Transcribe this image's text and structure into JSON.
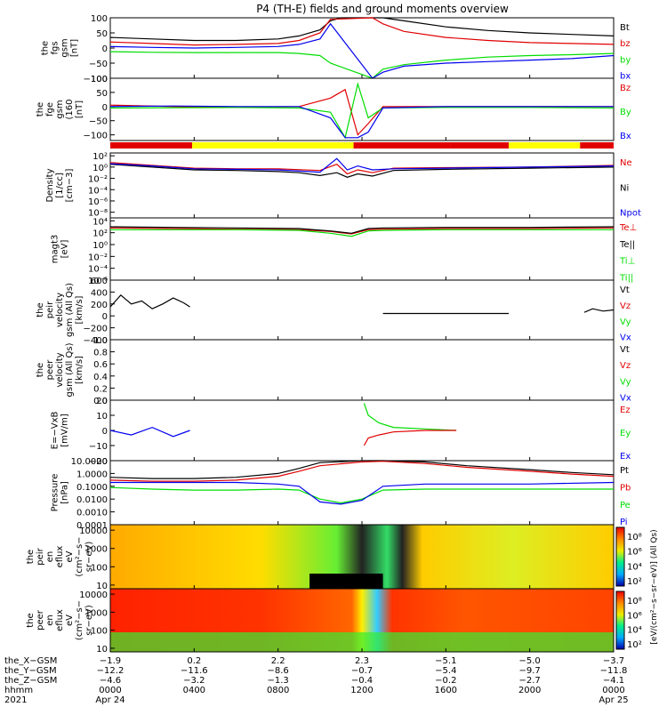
{
  "title": "P4 (TH-E) fields and ground moments overview",
  "colors": {
    "black": "#000000",
    "red": "#e00000",
    "green": "#00dd00",
    "blue": "#0000ee",
    "yellow": "#ffff00",
    "mode_red": "#e00000"
  },
  "panels": [
    {
      "id": "fgs",
      "ylabel_lines": [
        "the",
        "fgs",
        "gsm",
        "[nT]"
      ],
      "ticks": [
        "100",
        "50",
        "0",
        "−50",
        "−100"
      ],
      "legend": [
        {
          "text": "Bt",
          "color": "black"
        },
        {
          "text": "bz",
          "color": "red"
        },
        {
          "text": "by",
          "color": "green"
        },
        {
          "text": "bx",
          "color": "blue"
        }
      ]
    },
    {
      "id": "fge",
      "ylabel_lines": [
        "the",
        "fge",
        "gsm",
        "(160",
        "[nT]"
      ],
      "ticks": [
        "100",
        "50",
        "0",
        "−50",
        "−100"
      ],
      "legend": [
        {
          "text": "Bz",
          "color": "red"
        },
        {
          "text": "By",
          "color": "green"
        },
        {
          "text": "Bx",
          "color": "blue"
        }
      ]
    },
    {
      "id": "density",
      "ylabel_lines": [
        "Density",
        "[1/cc]",
        "[cm−3]"
      ],
      "ticks": [
        "10²",
        "10⁰",
        "10⁻²",
        "10⁻⁴",
        "10⁻⁶",
        "10⁻⁸"
      ],
      "legend": [
        {
          "text": "Ne",
          "color": "red"
        },
        {
          "text": "Ni",
          "color": "black"
        },
        {
          "text": "Npot",
          "color": "blue"
        }
      ]
    },
    {
      "id": "temp",
      "ylabel_lines": [
        "magt3",
        "[eV]"
      ],
      "ticks": [
        "10⁴",
        "10²",
        "10⁰",
        "10⁻²",
        "10⁻⁴",
        "10⁻⁶"
      ],
      "legend": [
        {
          "text": "Te⊥",
          "color": "red"
        },
        {
          "text": "Te||",
          "color": "black"
        },
        {
          "text": "Ti⊥",
          "color": "green"
        },
        {
          "text": "Ti||",
          "color": "green"
        }
      ]
    },
    {
      "id": "peir_vel",
      "ylabel_lines": [
        "the",
        "peir",
        "velocity",
        "gsm (All Qs)",
        "[km/s]"
      ],
      "ticks": [
        "600",
        "400",
        "200",
        "0",
        "−200",
        "−400"
      ],
      "legend": [
        {
          "text": "Vt",
          "color": "black"
        },
        {
          "text": "Vz",
          "color": "red"
        },
        {
          "text": "Vy",
          "color": "green"
        },
        {
          "text": "Vx",
          "color": "blue"
        }
      ]
    },
    {
      "id": "peer_vel",
      "ylabel_lines": [
        "the",
        "peer",
        "velocity",
        "gsm (All Qs)",
        "[km/s]"
      ],
      "ticks": [
        "1.0",
        "0.8",
        "0.6",
        "0.4",
        "0.2",
        "0.0"
      ],
      "legend": [
        {
          "text": "Vt",
          "color": "black"
        },
        {
          "text": "Vz",
          "color": "red"
        },
        {
          "text": "Vy",
          "color": "green"
        },
        {
          "text": "Vx",
          "color": "blue"
        }
      ]
    },
    {
      "id": "efield",
      "ylabel_lines": [
        "E=−VxB",
        "[mV/m]"
      ],
      "ticks": [
        "20",
        "10",
        "0",
        "−10",
        "−20"
      ],
      "legend": [
        {
          "text": "Ez",
          "color": "red"
        },
        {
          "text": "Ey",
          "color": "green"
        },
        {
          "text": "Ex",
          "color": "blue"
        }
      ]
    },
    {
      "id": "pressure",
      "ylabel_lines": [
        "Pressure",
        "[nPa]"
      ],
      "ticks": [
        "10.0000",
        "1.0000",
        "0.1000",
        "0.0100",
        "0.0010",
        "0.0001"
      ],
      "legend": [
        {
          "text": "Pt",
          "color": "black"
        },
        {
          "text": "Pb",
          "color": "red"
        },
        {
          "text": "Pe",
          "color": "green"
        },
        {
          "text": "Pi",
          "color": "blue"
        }
      ]
    },
    {
      "id": "peir_spec",
      "ylabel_lines": [
        "the",
        "peir",
        "en",
        "eflux",
        "eV",
        "(cm²−s−",
        "sr−eV)"
      ],
      "ticks": [
        "10000",
        "1000",
        "100",
        "10"
      ],
      "colorbar_ticks": [
        "10⁸",
        "10⁶",
        "10⁴",
        "10²"
      ]
    },
    {
      "id": "peer_spec",
      "ylabel_lines": [
        "the",
        "peer",
        "en",
        "eflux",
        "eV",
        "(cm²−s−",
        "sr−eV)"
      ],
      "ticks": [
        "10000",
        "1000",
        "100",
        "10"
      ],
      "colorbar_ticks": [
        "10⁸",
        "10⁶",
        "10⁴",
        "10²"
      ]
    }
  ],
  "colorbar_label": "[eV/(cm²−s−sr−eV)] (All Qs)",
  "axis": {
    "row_labels": [
      "the_X−GSM",
      "the_Y−GSM",
      "the_Z−GSM",
      "hhmm",
      "2021"
    ],
    "columns": [
      [
        "−1.9",
        "−12.2",
        "−4.6",
        "0000",
        "Apr 24"
      ],
      [
        "0.2",
        "−11.6",
        "−3.2",
        "0400",
        ""
      ],
      [
        "2.2",
        "−8.6",
        "−1.3",
        "0800",
        ""
      ],
      [
        "2.3",
        "−0.7",
        "−0.4",
        "1200",
        ""
      ],
      [
        "−5.1",
        "−5.4",
        "−0.2",
        "1600",
        ""
      ],
      [
        "−5.0",
        "−9.7",
        "−2.7",
        "2000",
        ""
      ],
      [
        "−3.7",
        "−11.8",
        "−4.1",
        "0000",
        "Apr 25"
      ]
    ]
  },
  "chart_data": {
    "type": "line",
    "title": "P4 (TH-E) fields and ground moments overview",
    "x_range_hours": [
      0,
      24
    ],
    "x_tick_labels": [
      "0000",
      "0400",
      "0800",
      "1200",
      "1600",
      "2000",
      "0000"
    ],
    "mode_bar": [
      {
        "start": 0,
        "end": 3.9,
        "color": "mode_red"
      },
      {
        "start": 3.9,
        "end": 11.6,
        "color": "yellow"
      },
      {
        "start": 11.6,
        "end": 16.2,
        "color": "mode_red"
      },
      {
        "start": 16.2,
        "end": 19.0,
        "color": "mode_red"
      },
      {
        "start": 19.0,
        "end": 22.4,
        "color": "yellow"
      },
      {
        "start": 22.4,
        "end": 24,
        "color": "mode_red"
      }
    ],
    "series": [
      {
        "panel": "fgs",
        "name": "Bt",
        "color": "black",
        "x": [
          0,
          2,
          4,
          6,
          8,
          9,
          10,
          10.5,
          11,
          12,
          12.5,
          13,
          14,
          16,
          18,
          20,
          22,
          24
        ],
        "y": [
          35,
          30,
          25,
          25,
          30,
          40,
          60,
          90,
          100,
          100,
          100,
          100,
          90,
          70,
          58,
          50,
          45,
          40
        ]
      },
      {
        "panel": "fgs",
        "name": "bz",
        "color": "red",
        "x": [
          0,
          2,
          4,
          6,
          8,
          9,
          10,
          10.5,
          12.5,
          13,
          14,
          16,
          18,
          20,
          22,
          24
        ],
        "y": [
          20,
          15,
          10,
          12,
          15,
          25,
          50,
          95,
          100,
          80,
          55,
          35,
          25,
          18,
          15,
          12
        ]
      },
      {
        "panel": "fgs",
        "name": "by",
        "color": "green",
        "x": [
          0,
          2,
          4,
          6,
          8,
          9,
          10,
          10.5,
          12.5,
          13,
          14,
          16,
          18,
          20,
          22,
          24
        ],
        "y": [
          -12,
          -14,
          -15,
          -15,
          -15,
          -18,
          -25,
          -50,
          -100,
          -70,
          -55,
          -40,
          -30,
          -25,
          -22,
          -18
        ]
      },
      {
        "panel": "fgs",
        "name": "bx",
        "color": "blue",
        "x": [
          0,
          2,
          4,
          6,
          8,
          9,
          10,
          10.5,
          12.5,
          13,
          14,
          16,
          18,
          20,
          22,
          24
        ],
        "y": [
          5,
          2,
          0,
          2,
          5,
          12,
          30,
          80,
          -100,
          -80,
          -60,
          -50,
          -45,
          -40,
          -35,
          -25
        ]
      },
      {
        "panel": "fge",
        "name": "Bz",
        "color": "red",
        "x": [
          0,
          3,
          6,
          9,
          10.5,
          11.2,
          11.8,
          12.3,
          13,
          16,
          20,
          24
        ],
        "y": [
          5,
          0,
          -2,
          0,
          30,
          60,
          -100,
          -60,
          0,
          0,
          0,
          0
        ]
      },
      {
        "panel": "fge",
        "name": "By",
        "color": "green",
        "x": [
          0,
          3,
          6,
          9,
          10.5,
          11.2,
          11.8,
          12.3,
          13,
          16,
          20,
          24
        ],
        "y": [
          -5,
          -4,
          -3,
          -5,
          -20,
          -110,
          80,
          -40,
          -5,
          -3,
          -3,
          -5
        ]
      },
      {
        "panel": "fge",
        "name": "Bx",
        "color": "blue",
        "x": [
          0,
          3,
          6,
          9,
          10.5,
          11.2,
          11.8,
          12.3,
          13,
          16,
          20,
          24
        ],
        "y": [
          0,
          2,
          0,
          0,
          -40,
          -110,
          -110,
          -90,
          -5,
          0,
          0,
          0
        ]
      },
      {
        "panel": "density",
        "name": "Ni",
        "color": "black",
        "x": [
          0,
          2,
          4,
          6,
          8,
          9,
          10,
          10.8,
          11.3,
          11.8,
          12.5,
          13.5,
          16,
          20,
          24
        ],
        "y": [
          0.5,
          0,
          -0.5,
          -0.6,
          -0.8,
          -1,
          -1.5,
          -1.0,
          -1.8,
          -1.2,
          -1.6,
          -0.6,
          -0.4,
          -0.2,
          0
        ]
      },
      {
        "panel": "density",
        "name": "Ne",
        "color": "red",
        "x": [
          0,
          2,
          4,
          6,
          8,
          10,
          10.8,
          11.3,
          11.8,
          12.5,
          13.5,
          16,
          20,
          24
        ],
        "y": [
          0.8,
          0.3,
          -0.2,
          -0.3,
          -0.3,
          -0.6,
          0.5,
          -1.2,
          -0.5,
          -1.0,
          -0.2,
          -0.1,
          0,
          0.3
        ]
      },
      {
        "panel": "density",
        "name": "Npot",
        "color": "blue",
        "x": [
          0,
          2,
          4,
          6,
          8,
          10,
          10.8,
          11.3,
          11.8,
          12.5,
          13.5,
          16,
          20,
          24
        ],
        "y": [
          0.6,
          0.2,
          -0.3,
          -0.4,
          -0.5,
          -0.9,
          1.5,
          -0.5,
          0.2,
          -0.5,
          -0.3,
          -0.2,
          0,
          0.2
        ]
      },
      {
        "panel": "temp",
        "name": "Te⊥",
        "color": "red",
        "x": [
          0,
          3,
          6,
          9,
          10.5,
          11.5,
          12.3,
          13,
          16,
          20,
          24
        ],
        "y": [
          2.8,
          2.7,
          2.6,
          2.5,
          2.2,
          1.8,
          2.5,
          2.6,
          2.7,
          2.7,
          2.8
        ]
      },
      {
        "panel": "temp",
        "name": "Ti⊥",
        "color": "green",
        "x": [
          0,
          3,
          6,
          9,
          10.5,
          11.5,
          12.3,
          13,
          16,
          20,
          24
        ],
        "y": [
          2.5,
          2.5,
          2.5,
          2.4,
          1.9,
          1.4,
          2.3,
          2.4,
          2.5,
          2.5,
          2.5
        ]
      },
      {
        "panel": "temp",
        "name": "Te||",
        "color": "black",
        "x": [
          0,
          3,
          6,
          9,
          10.5,
          11.5,
          12.3,
          13,
          16,
          20,
          24
        ],
        "y": [
          3.0,
          2.9,
          2.8,
          2.7,
          2.3,
          1.9,
          2.7,
          2.8,
          2.9,
          2.9,
          3.0
        ]
      },
      {
        "panel": "peir_vel",
        "name": "Vt",
        "color": "black",
        "x": [
          0,
          0.5,
          1,
          1.5,
          2,
          2.5,
          3,
          3.5,
          3.8
        ],
        "y": [
          150,
          350,
          200,
          250,
          120,
          200,
          300,
          220,
          150
        ]
      },
      {
        "panel": "peir_vel",
        "name": "Vt",
        "color": "black",
        "x": [
          13,
          16,
          19
        ],
        "y": [
          40,
          40,
          40
        ]
      },
      {
        "panel": "peir_vel",
        "name": "Vt",
        "color": "black",
        "x": [
          22.6,
          23,
          23.5,
          24
        ],
        "y": [
          60,
          120,
          80,
          100
        ]
      },
      {
        "panel": "efield",
        "name": "Ex",
        "color": "blue",
        "x": [
          0,
          1,
          2,
          3,
          3.8
        ],
        "y": [
          0,
          -3,
          2,
          -4,
          0
        ]
      },
      {
        "panel": "efield",
        "name": "Ey",
        "color": "green",
        "x": [
          12.1,
          12.3,
          12.8,
          13.5,
          15,
          16.5
        ],
        "y": [
          18,
          10,
          5,
          2,
          1,
          0
        ]
      },
      {
        "panel": "efield",
        "name": "Ez",
        "color": "red",
        "x": [
          12.1,
          12.3,
          12.8,
          13.5,
          15,
          16.5
        ],
        "y": [
          -10,
          -5,
          -3,
          -1,
          0,
          0
        ]
      },
      {
        "panel": "pressure",
        "name": "Pt",
        "color": "black",
        "x": [
          0,
          2,
          4,
          6,
          8,
          9,
          10,
          12,
          13,
          15,
          17,
          20,
          22,
          24
        ],
        "y": [
          0.5,
          0.4,
          0.4,
          0.5,
          1.0,
          2.5,
          7,
          10,
          10,
          8,
          4,
          2,
          1.2,
          0.8
        ]
      },
      {
        "panel": "pressure",
        "name": "Pb",
        "color": "red",
        "x": [
          0,
          2,
          4,
          6,
          8,
          9,
          10,
          12,
          13,
          15,
          17,
          20,
          22,
          24
        ],
        "y": [
          0.3,
          0.25,
          0.25,
          0.3,
          0.6,
          1.5,
          4,
          8,
          9,
          6,
          3,
          1.5,
          0.9,
          0.6
        ]
      },
      {
        "panel": "pressure",
        "name": "Pe",
        "color": "green",
        "x": [
          0,
          2,
          4,
          6,
          8,
          9,
          10,
          11,
          12,
          13,
          15,
          20,
          24
        ],
        "y": [
          0.08,
          0.06,
          0.05,
          0.05,
          0.06,
          0.05,
          0.01,
          0.005,
          0.01,
          0.05,
          0.06,
          0.06,
          0.06
        ]
      },
      {
        "panel": "pressure",
        "name": "Pi",
        "color": "blue",
        "x": [
          0,
          2,
          4,
          6,
          8,
          9,
          10,
          11,
          12,
          13,
          15,
          20,
          24
        ],
        "y": [
          0.2,
          0.2,
          0.2,
          0.2,
          0.15,
          0.1,
          0.006,
          0.004,
          0.008,
          0.1,
          0.15,
          0.15,
          0.2
        ]
      }
    ]
  }
}
